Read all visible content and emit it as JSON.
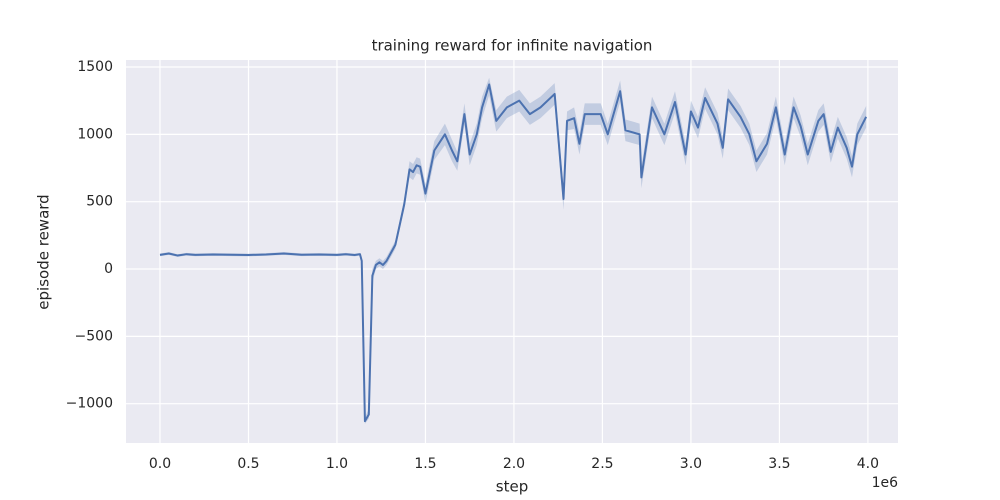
{
  "chart_data": {
    "type": "line",
    "title": "training reward for infinite navigation",
    "x_label": "step",
    "y_label": "episode reward",
    "x_offset_label": "1e6",
    "color": "#4c72b0",
    "grid": true,
    "xlim": [
      -192000,
      4170000
    ],
    "ylim": [
      -1292,
      1552
    ],
    "xticks": [
      {
        "value": 0,
        "label": "0.0"
      },
      {
        "value": 500000,
        "label": "0.5"
      },
      {
        "value": 1000000,
        "label": "1.0"
      },
      {
        "value": 1500000,
        "label": "1.5"
      },
      {
        "value": 2000000,
        "label": "2.0"
      },
      {
        "value": 2500000,
        "label": "2.5"
      },
      {
        "value": 3000000,
        "label": "3.0"
      },
      {
        "value": 3500000,
        "label": "3.5"
      },
      {
        "value": 4000000,
        "label": "4.0"
      }
    ],
    "yticks": [
      {
        "value": -1000,
        "label": "−1000"
      },
      {
        "value": -500,
        "label": "−500"
      },
      0,
      500,
      1000,
      1500
    ],
    "x": [
      0,
      50000,
      100000,
      150000,
      200000,
      300000,
      400000,
      500000,
      600000,
      700000,
      800000,
      900000,
      1000000,
      1050000,
      1100000,
      1130000,
      1140000,
      1158000,
      1180000,
      1200000,
      1220000,
      1240000,
      1260000,
      1280000,
      1330000,
      1380000,
      1410000,
      1430000,
      1450000,
      1470000,
      1500000,
      1550000,
      1610000,
      1650000,
      1680000,
      1720000,
      1750000,
      1790000,
      1820000,
      1860000,
      1900000,
      1960000,
      2030000,
      2090000,
      2150000,
      2230000,
      2280000,
      2300000,
      2340000,
      2370000,
      2400000,
      2490000,
      2530000,
      2600000,
      2630000,
      2710000,
      2720000,
      2780000,
      2850000,
      2910000,
      2970000,
      3000000,
      3040000,
      3080000,
      3150000,
      3180000,
      3210000,
      3280000,
      3330000,
      3370000,
      3430000,
      3480000,
      3530000,
      3580000,
      3620000,
      3660000,
      3720000,
      3750000,
      3790000,
      3830000,
      3880000,
      3910000,
      3940000,
      3990000
    ],
    "values": [
      105,
      115,
      100,
      110,
      105,
      108,
      106,
      104,
      108,
      115,
      106,
      108,
      105,
      110,
      104,
      110,
      60,
      -1130,
      -1080,
      -50,
      30,
      50,
      30,
      60,
      180,
      480,
      740,
      720,
      770,
      760,
      560,
      880,
      1000,
      880,
      800,
      1150,
      850,
      1000,
      1200,
      1370,
      1100,
      1200,
      1250,
      1150,
      1200,
      1300,
      520,
      1100,
      1120,
      930,
      1150,
      1150,
      1000,
      1320,
      1030,
      1000,
      680,
      1200,
      1000,
      1240,
      850,
      1170,
      1050,
      1270,
      1080,
      900,
      1260,
      1130,
      1000,
      800,
      930,
      1200,
      850,
      1200,
      1060,
      850,
      1100,
      1150,
      870,
      1050,
      900,
      760,
      1000,
      1130
    ],
    "ci_lower": [
      95,
      105,
      90,
      100,
      95,
      98,
      96,
      94,
      98,
      105,
      96,
      98,
      95,
      100,
      94,
      100,
      40,
      -1150,
      -1110,
      -100,
      0,
      20,
      0,
      30,
      150,
      440,
      680,
      660,
      710,
      700,
      490,
      810,
      920,
      800,
      730,
      1070,
      770,
      920,
      1120,
      1290,
      1020,
      1120,
      1170,
      1070,
      1120,
      1220,
      440,
      1030,
      1040,
      850,
      1070,
      1070,
      920,
      1240,
      950,
      920,
      600,
      1120,
      920,
      1160,
      770,
      1090,
      970,
      1190,
      1000,
      820,
      1180,
      1050,
      920,
      720,
      850,
      1120,
      770,
      1120,
      980,
      770,
      1020,
      1070,
      790,
      970,
      820,
      680,
      920,
      1050
    ],
    "ci_upper": [
      115,
      125,
      110,
      120,
      115,
      118,
      116,
      114,
      118,
      125,
      116,
      118,
      115,
      120,
      114,
      120,
      80,
      -1100,
      -1040,
      0,
      60,
      80,
      60,
      90,
      210,
      520,
      800,
      780,
      830,
      820,
      630,
      950,
      1080,
      960,
      870,
      1230,
      930,
      1080,
      1280,
      1420,
      1180,
      1280,
      1330,
      1230,
      1280,
      1380,
      600,
      1170,
      1200,
      1010,
      1230,
      1230,
      1080,
      1400,
      1110,
      1080,
      760,
      1280,
      1080,
      1320,
      930,
      1250,
      1130,
      1350,
      1160,
      980,
      1340,
      1210,
      1080,
      880,
      1010,
      1280,
      930,
      1280,
      1140,
      930,
      1180,
      1230,
      950,
      1130,
      980,
      840,
      1080,
      1210
    ]
  }
}
